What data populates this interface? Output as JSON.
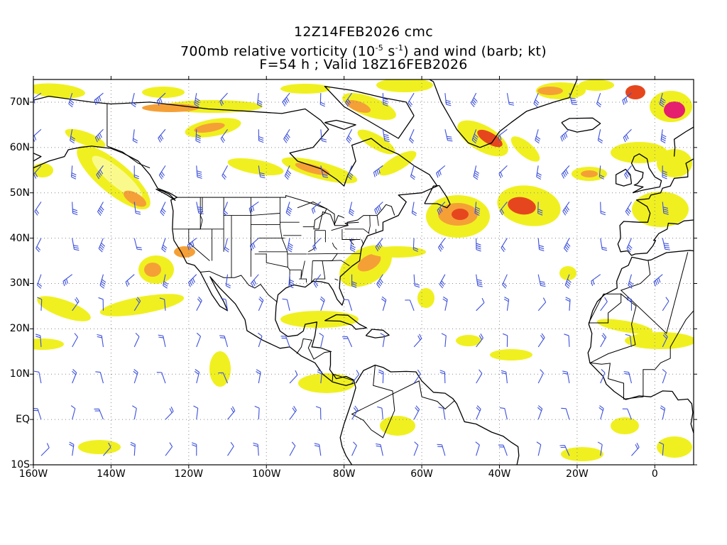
{
  "title": {
    "line1": "12Z14FEB2026 cmc",
    "line2_pre": "700mb relative vorticity (10",
    "line2_exp1": "-5",
    "line2_mid": " s",
    "line2_exp2": "-1",
    "line2_post": ") and wind (barb; kt)",
    "line3": "F=54 h ; Valid 18Z16FEB2026"
  },
  "axes": {
    "lat_labels": [
      "70N",
      "60N",
      "50N",
      "40N",
      "30N",
      "20N",
      "10N",
      "EQ",
      "10S"
    ],
    "lon_labels": [
      "160W",
      "140W",
      "120W",
      "100W",
      "80W",
      "60W",
      "40W",
      "20W",
      "0"
    ]
  },
  "colors": {
    "vort_light": "#f0f020",
    "vort_pale": "#fafa8c",
    "vort_orange": "#f5a037",
    "vort_red": "#e6461e",
    "vort_magenta": "#e61e6e",
    "barb": "#3c50dc",
    "coast": "#000000",
    "grid": "#888888"
  }
}
